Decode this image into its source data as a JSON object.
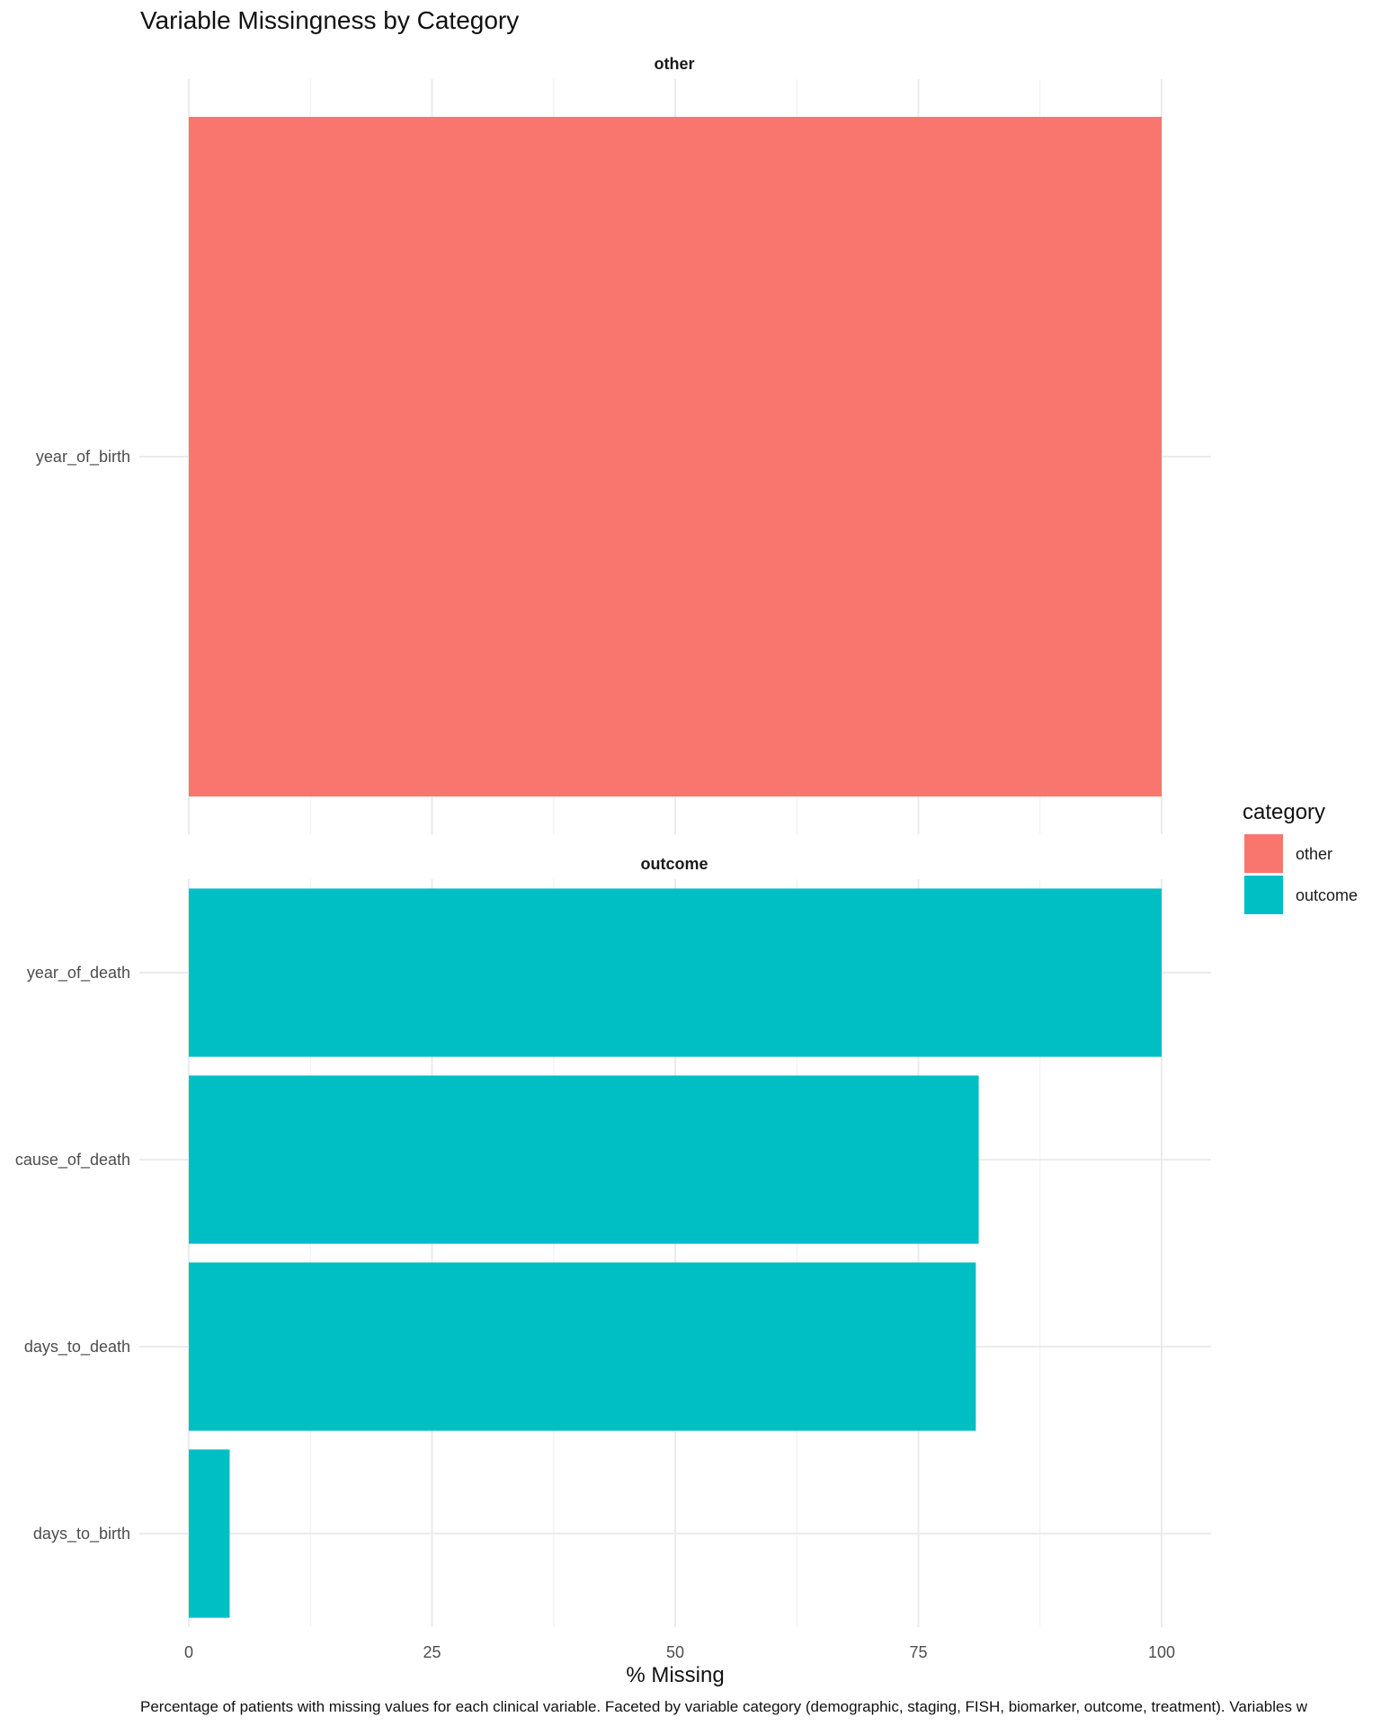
{
  "chart_data": {
    "type": "bar",
    "orientation": "horizontal",
    "title": "Variable Missingness by Category",
    "xlabel": "% Missing",
    "ylabel": "",
    "xlim": [
      0,
      105
    ],
    "x_ticks": [
      "0",
      "25",
      "50",
      "75",
      "100"
    ],
    "x_tick_values": [
      0,
      25,
      50,
      75,
      100
    ],
    "grid": true,
    "facets": [
      {
        "label": "other",
        "color": "#F8766D",
        "categories": [
          "year_of_birth"
        ],
        "values": [
          100
        ]
      },
      {
        "label": "outcome",
        "color": "#00BFC4",
        "categories": [
          "year_of_death",
          "cause_of_death",
          "days_to_death",
          "days_to_birth"
        ],
        "values": [
          100,
          81.2,
          80.9,
          4.2
        ]
      }
    ],
    "legend": {
      "title": "category",
      "position": "right",
      "items": [
        {
          "label": "other",
          "color": "#F8766D"
        },
        {
          "label": "outcome",
          "color": "#00BFC4"
        }
      ]
    },
    "caption": "Percentage of patients with missing values for each clinical variable. Faceted by variable category (demographic, staging, FISH, biomarker, outcome, treatment). Variables w"
  }
}
